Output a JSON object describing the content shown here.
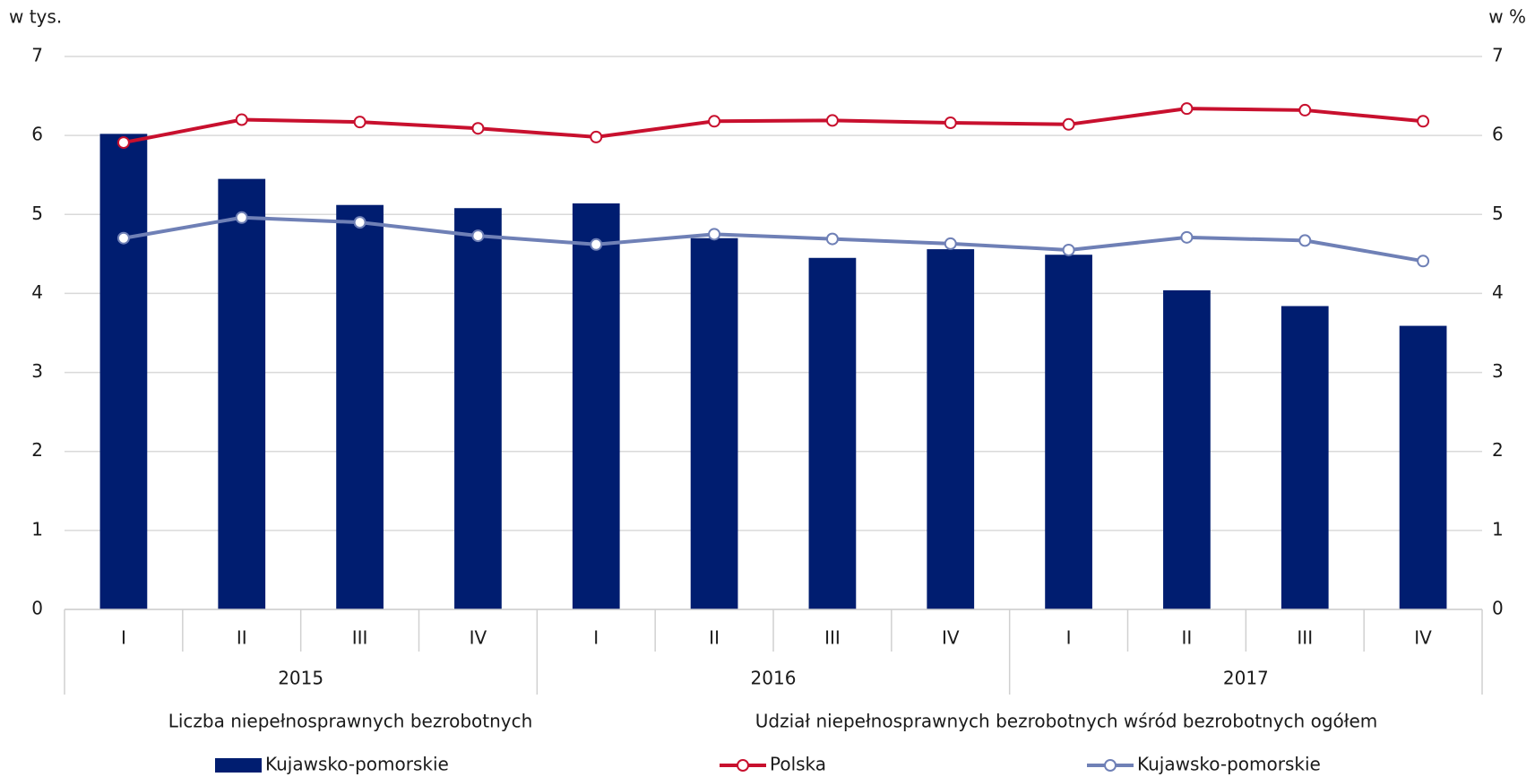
{
  "chart_data": {
    "type": "bar_line",
    "y_label": "w tys.",
    "y2_label": "w %",
    "categories": [
      "I",
      "II",
      "III",
      "IV",
      "I",
      "II",
      "III",
      "IV",
      "I",
      "II",
      "III",
      "IV"
    ],
    "groups": [
      "2015",
      "2016",
      "2017"
    ],
    "legend_titles": [
      "Liczba niepełnosprawnych bezrobotnych",
      "Udział niepełnosprawnych bezrobotnych wśród bezrobotnych ogółem"
    ],
    "series": [
      {
        "name": "Kujawsko-pomorskie",
        "kind": "bar",
        "color": "#001d70",
        "values": [
          6.02,
          5.45,
          5.12,
          5.08,
          5.14,
          4.7,
          4.45,
          4.56,
          4.49,
          4.04,
          3.84,
          3.59
        ]
      },
      {
        "name": "Polska",
        "kind": "line",
        "axis": "y2",
        "color": "#c8102e",
        "values": [
          5.91,
          6.2,
          6.17,
          6.09,
          5.98,
          6.18,
          6.19,
          6.16,
          6.14,
          6.34,
          6.32,
          6.18
        ]
      },
      {
        "name": "Kujawsko-pomorskie",
        "kind": "line",
        "axis": "y2",
        "color": "#6f80b6",
        "values": [
          4.7,
          4.96,
          4.9,
          4.73,
          4.62,
          4.75,
          4.69,
          4.63,
          4.55,
          4.71,
          4.67,
          4.41
        ]
      }
    ],
    "ylim": [
      0,
      7
    ],
    "yticks": [
      0,
      1,
      2,
      3,
      4,
      5,
      6,
      7
    ],
    "y2lim": [
      0,
      7
    ],
    "y2ticks": [
      0,
      1,
      2,
      3,
      4,
      5,
      6,
      7
    ],
    "grid": true
  }
}
